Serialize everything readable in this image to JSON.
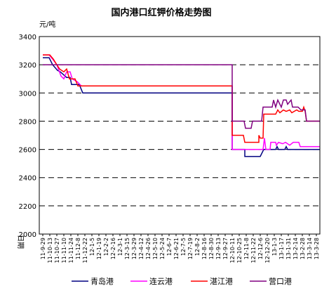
{
  "chart_data": {
    "type": "line",
    "title": "国内港口红钾价格走势图",
    "ylabel": "元/吨",
    "xlabel": "日期",
    "ylim": [
      2000,
      3400
    ],
    "yticks": [
      2000,
      2200,
      2400,
      2600,
      2800,
      3000,
      3200,
      3400
    ],
    "grid": true,
    "legend": "bottom",
    "x_ticks": [
      "11-9-29",
      "11-10-13",
      "11-10-27",
      "11-11-10",
      "11-11-24",
      "11-12-8",
      "11-12-22",
      "12-1-5",
      "12-1-19",
      "12-2-2",
      "12-2-16",
      "12-3-1",
      "12-3-15",
      "12-3-29",
      "12-4-12",
      "12-4-26",
      "12-5-10",
      "12-5-24",
      "12-6-7",
      "12-6-21",
      "12-7-5",
      "12-7-19",
      "12-8-2",
      "12-8-16",
      "12-8-30",
      "12-9-13",
      "12-9-27",
      "12-10-11",
      "12-10-25",
      "12-11-8",
      "12-11-22",
      "12-12-6",
      "12-12-20",
      "13-1-3",
      "13-1-17",
      "13-1-31",
      "13-2-14",
      "13-2-28",
      "13-3-14",
      "13-3-28"
    ],
    "series": [
      {
        "name": "青岛港",
        "color": "#000080",
        "points": [
          [
            0,
            3250
          ],
          [
            0.9,
            3250
          ],
          [
            1.4,
            3200
          ],
          [
            2.1,
            3160
          ],
          [
            2.5,
            3150
          ],
          [
            3.4,
            3110
          ],
          [
            3.9,
            3110
          ],
          [
            4.1,
            3060
          ],
          [
            5.2,
            3060
          ],
          [
            5.7,
            3000
          ],
          [
            27,
            3000
          ],
          [
            27,
            2600
          ],
          [
            28.8,
            2600
          ],
          [
            28.8,
            2550
          ],
          [
            31,
            2550
          ],
          [
            31.5,
            2600
          ],
          [
            33.2,
            2600
          ],
          [
            33.4,
            2620
          ],
          [
            33.6,
            2600
          ],
          [
            34.5,
            2600
          ],
          [
            34.7,
            2620
          ],
          [
            34.9,
            2600
          ],
          [
            36.5,
            2600
          ],
          [
            36.5,
            2600
          ],
          [
            39.5,
            2600
          ]
        ]
      },
      {
        "name": "连云港",
        "color": "#ff00ff",
        "points": [
          [
            0,
            3270
          ],
          [
            0.9,
            3270
          ],
          [
            1.4,
            3240
          ],
          [
            2.0,
            3200
          ],
          [
            2.6,
            3120
          ],
          [
            3.0,
            3100
          ],
          [
            3.4,
            3150
          ],
          [
            3.9,
            3150
          ],
          [
            4.2,
            3100
          ],
          [
            4.9,
            3080
          ],
          [
            5.5,
            3050
          ],
          [
            27,
            3050
          ],
          [
            27,
            2600
          ],
          [
            31.4,
            2600
          ],
          [
            31.6,
            2680
          ],
          [
            31.8,
            2600
          ],
          [
            32.4,
            2600
          ],
          [
            32.5,
            2650
          ],
          [
            33.2,
            2650
          ],
          [
            33.3,
            2630
          ],
          [
            33.6,
            2650
          ],
          [
            34.2,
            2640
          ],
          [
            34.6,
            2650
          ],
          [
            35.2,
            2630
          ],
          [
            35.7,
            2650
          ],
          [
            36.5,
            2650
          ],
          [
            36.7,
            2620
          ],
          [
            39.5,
            2620
          ]
        ]
      },
      {
        "name": "湛江港",
        "color": "#ff0000",
        "points": [
          [
            0,
            3270
          ],
          [
            1.0,
            3270
          ],
          [
            1.5,
            3240
          ],
          [
            2.0,
            3200
          ],
          [
            2.4,
            3170
          ],
          [
            3.0,
            3150
          ],
          [
            3.4,
            3170
          ],
          [
            3.8,
            3100
          ],
          [
            4.6,
            3100
          ],
          [
            5.0,
            3050
          ],
          [
            27,
            3050
          ],
          [
            27,
            2700
          ],
          [
            28.6,
            2700
          ],
          [
            28.8,
            2650
          ],
          [
            30.8,
            2650
          ],
          [
            30.8,
            2700
          ],
          [
            31.0,
            2680
          ],
          [
            31.4,
            2680
          ],
          [
            31.5,
            2850
          ],
          [
            33.2,
            2850
          ],
          [
            33.5,
            2880
          ],
          [
            33.8,
            2860
          ],
          [
            34.3,
            2880
          ],
          [
            34.7,
            2870
          ],
          [
            35.2,
            2880
          ],
          [
            35.5,
            2860
          ],
          [
            36.2,
            2880
          ],
          [
            36.5,
            2870
          ],
          [
            37.0,
            2870
          ],
          [
            37.2,
            2900
          ],
          [
            37.4,
            2870
          ],
          [
            37.6,
            2800
          ],
          [
            39.5,
            2800
          ]
        ]
      },
      {
        "name": "营口港",
        "color": "#800080",
        "points": [
          [
            0,
            3200
          ],
          [
            27,
            3200
          ],
          [
            27,
            2800
          ],
          [
            28.7,
            2800
          ],
          [
            28.9,
            2750
          ],
          [
            29.7,
            2750
          ],
          [
            29.9,
            2800
          ],
          [
            31.2,
            2800
          ],
          [
            31.4,
            2900
          ],
          [
            32.7,
            2900
          ],
          [
            32.9,
            2950
          ],
          [
            33.2,
            2900
          ],
          [
            33.5,
            2950
          ],
          [
            34.0,
            2900
          ],
          [
            34.3,
            2950
          ],
          [
            34.7,
            2950
          ],
          [
            34.9,
            2920
          ],
          [
            35.4,
            2950
          ],
          [
            35.6,
            2900
          ],
          [
            36.4,
            2900
          ],
          [
            36.8,
            2880
          ],
          [
            37.4,
            2880
          ],
          [
            37.6,
            2800
          ],
          [
            39.5,
            2800
          ]
        ]
      }
    ]
  }
}
